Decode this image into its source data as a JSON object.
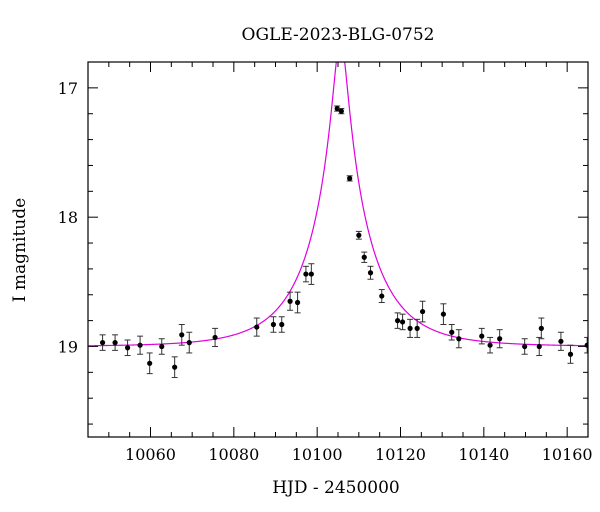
{
  "chart_data": {
    "type": "scatter",
    "title": "OGLE-2023-BLG-0752",
    "xlabel": "HJD - 2450000",
    "ylabel": "I magnitude",
    "xlim": [
      10045,
      10165
    ],
    "ylim": [
      19.7,
      16.8
    ],
    "y_inverted": true,
    "xticks": [
      10060,
      10080,
      10100,
      10120,
      10140,
      10160
    ],
    "yticks": [
      17,
      18,
      19
    ],
    "grid": false,
    "colors": {
      "model": "#e000e0",
      "points": "#000000"
    },
    "model": {
      "t0": 10105.6,
      "tE": 14.5,
      "u0": 0.113,
      "baseline_mag": 19.0
    },
    "series": [
      {
        "points": [
          [
            10048.5,
            18.97,
            0.06
          ],
          [
            10051.5,
            18.97,
            0.06
          ],
          [
            10054.5,
            19.01,
            0.06
          ],
          [
            10057.5,
            18.99,
            0.07
          ],
          [
            10059.8,
            19.13,
            0.08
          ],
          [
            10062.7,
            19.0,
            0.06
          ],
          [
            10065.8,
            19.16,
            0.08
          ],
          [
            10067.5,
            18.91,
            0.08
          ],
          [
            10069.3,
            18.97,
            0.08
          ],
          [
            10075.5,
            18.93,
            0.07
          ],
          [
            10085.5,
            18.85,
            0.07
          ],
          [
            10089.5,
            18.83,
            0.06
          ],
          [
            10091.5,
            18.83,
            0.06
          ],
          [
            10093.5,
            18.65,
            0.07
          ],
          [
            10095.3,
            18.66,
            0.08
          ],
          [
            10097.3,
            18.44,
            0.06
          ],
          [
            10098.6,
            18.44,
            0.08
          ],
          [
            10104.8,
            17.16,
            0.02
          ],
          [
            10105.8,
            17.18,
            0.02
          ],
          [
            10107.8,
            17.7,
            0.02
          ],
          [
            10110.0,
            18.14,
            0.03
          ],
          [
            10111.3,
            18.31,
            0.04
          ],
          [
            10112.8,
            18.43,
            0.05
          ],
          [
            10115.5,
            18.61,
            0.05
          ],
          [
            10119.3,
            18.8,
            0.06
          ],
          [
            10120.5,
            18.81,
            0.06
          ],
          [
            10122.3,
            18.86,
            0.07
          ],
          [
            10124.0,
            18.86,
            0.07
          ],
          [
            10125.3,
            18.73,
            0.08
          ],
          [
            10130.3,
            18.75,
            0.08
          ],
          [
            10132.3,
            18.89,
            0.06
          ],
          [
            10134.0,
            18.94,
            0.07
          ],
          [
            10139.5,
            18.92,
            0.06
          ],
          [
            10141.5,
            18.99,
            0.06
          ],
          [
            10143.8,
            18.94,
            0.07
          ],
          [
            10149.8,
            19.0,
            0.06
          ],
          [
            10153.3,
            19.0,
            0.07
          ],
          [
            10153.8,
            18.86,
            0.08
          ],
          [
            10158.5,
            18.96,
            0.07
          ],
          [
            10160.8,
            19.06,
            0.07
          ],
          [
            10164.8,
            18.99,
            0.06
          ]
        ]
      }
    ]
  }
}
